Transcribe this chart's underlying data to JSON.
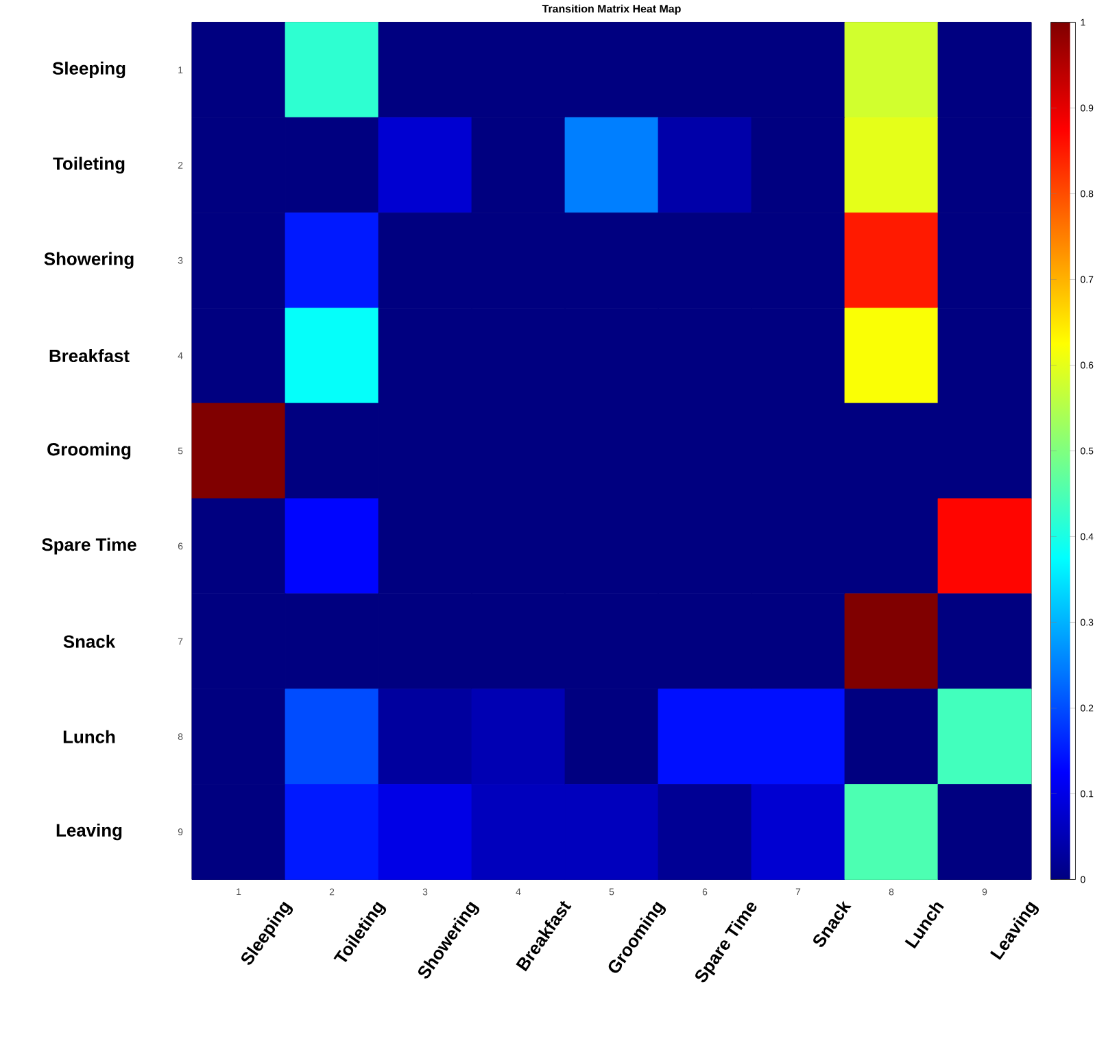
{
  "chart_data": {
    "type": "heatmap",
    "title": "Transition Matrix Heat Map",
    "categories": [
      "Sleeping",
      "Toileting",
      "Showering",
      "Breakfast",
      "Grooming",
      "Spare Time",
      "Snack",
      "Lunch",
      "Leaving"
    ],
    "y_categories": [
      "Sleeping",
      "Toileting",
      "Showering",
      "Breakfast",
      "Grooming",
      "Spare Time",
      "Snack",
      "Lunch",
      "Leaving"
    ],
    "annotations": [
      "1",
      "2",
      "3",
      "4",
      "5",
      "6",
      "7",
      "8",
      "9",
      "1",
      "2",
      "3",
      "4",
      "5",
      "6",
      "7",
      "8",
      "9"
    ],
    "cells": [
      [
        0,
        0.42,
        0,
        0,
        0,
        0,
        0,
        0.58,
        0
      ],
      [
        0,
        0,
        0.08,
        0,
        0.25,
        0.04,
        0,
        0.6,
        0
      ],
      [
        0,
        0.15,
        0,
        0,
        0,
        0,
        0,
        0.85,
        0
      ],
      [
        0,
        0.38,
        0,
        0,
        0,
        0,
        0,
        0.62,
        0
      ],
      [
        1,
        0,
        0,
        0,
        0,
        0,
        0,
        0,
        0
      ],
      [
        0,
        0.13,
        0,
        0,
        0,
        0,
        0,
        0,
        0.87
      ],
      [
        0,
        0,
        0,
        0,
        0,
        0,
        0,
        1,
        0
      ],
      [
        0,
        0.2,
        0.03,
        0.05,
        0,
        0.14,
        0.14,
        0,
        0.44
      ],
      [
        0,
        0.15,
        0.1,
        0.06,
        0.06,
        0.02,
        0.08,
        0.45,
        0
      ]
    ],
    "clim": [
      0,
      1
    ],
    "cticks": [
      0,
      0.1,
      0.2,
      0.3,
      0.4,
      0.5,
      0.6,
      0.7,
      0.8,
      0.9,
      1
    ]
  }
}
